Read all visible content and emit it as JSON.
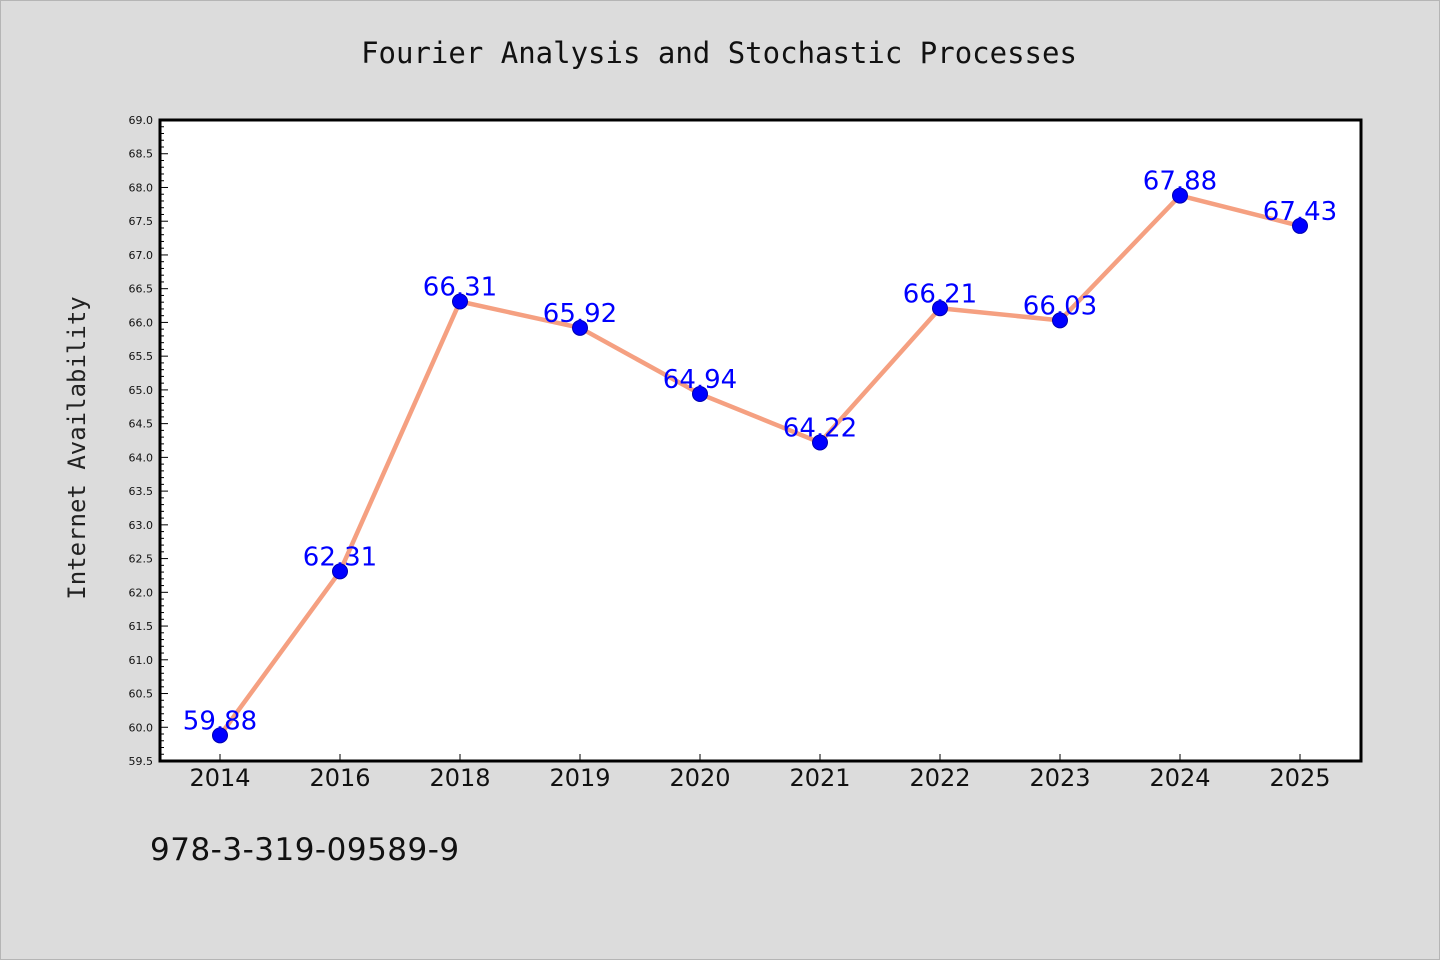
{
  "footer_code": "978-3-319-09589-9",
  "colors": {
    "background": "#dcdcdc",
    "plot_background": "#ffffff",
    "line": "#f5a081",
    "marker": "#0000ff",
    "data_label": "#0000ff"
  },
  "chart_data": {
    "type": "line",
    "title": "Fourier Analysis and Stochastic Processes",
    "xlabel": "",
    "ylabel": "Internet Availability",
    "categories": [
      "2014",
      "2016",
      "2018",
      "2019",
      "2020",
      "2021",
      "2022",
      "2023",
      "2024",
      "2025"
    ],
    "series": [
      {
        "values": [
          59.88,
          62.31,
          66.31,
          65.92,
          64.94,
          64.22,
          66.21,
          66.03,
          67.88,
          67.43
        ],
        "labels": [
          "59.88",
          "62.31",
          "66.31",
          "65.92",
          "64.94",
          "64.22",
          "66.21",
          "66.03",
          "67.88",
          "67.43"
        ]
      }
    ],
    "ylim": [
      59.5,
      69.0
    ],
    "yticks": [
      "59.5",
      "60.0",
      "60.5",
      "61.0",
      "61.5",
      "62.0",
      "62.5",
      "63.0",
      "63.5",
      "64.0",
      "64.5",
      "65.0",
      "65.5",
      "66.0",
      "66.5",
      "67.0",
      "67.5",
      "68.0",
      "68.5",
      "69.0"
    ],
    "grid": false,
    "legend": "none"
  }
}
